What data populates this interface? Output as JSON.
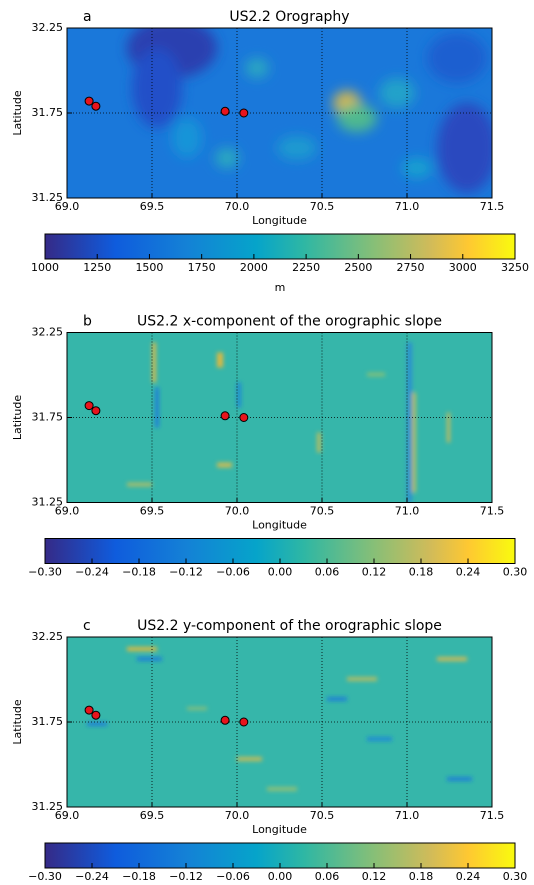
{
  "chart_data": [
    {
      "type": "heatmap",
      "panel": "a",
      "title": "US2.2 Orography",
      "xlabel": "Longitude",
      "ylabel": "Latitude",
      "xlim": [
        69.0,
        71.5
      ],
      "xticks": [
        {
          "value": 69,
          "label": "69.0"
        },
        69.5,
        {
          "value": 70,
          "label": "70.0"
        },
        70.5,
        {
          "value": 71,
          "label": "71.0"
        },
        71.5
      ],
      "ylim": [
        31.25,
        32.25
      ],
      "yticks": [
        31.25,
        31.75,
        32.25
      ],
      "grid": true,
      "points": {
        "x": [
          69.13,
          69.17,
          69.93,
          70.04
        ],
        "y": [
          31.82,
          31.79,
          31.76,
          31.75
        ],
        "color": "#e8141c"
      },
      "colorbar": {
        "label": "m",
        "lim": [
          1000,
          3250
        ],
        "ticks": [
          1000,
          1250,
          1500,
          1750,
          2000,
          2250,
          2500,
          2750,
          3000,
          3250
        ]
      }
    },
    {
      "type": "heatmap",
      "panel": "b",
      "title": "US2.2 x-component of the orographic slope",
      "xlabel": "Longitude",
      "ylabel": "Latitude",
      "xlim": [
        69.0,
        71.5
      ],
      "xticks": [
        {
          "value": 69,
          "label": "69.0"
        },
        69.5,
        {
          "value": 70,
          "label": "70.0"
        },
        70.5,
        {
          "value": 71,
          "label": "71.0"
        },
        71.5
      ],
      "ylim": [
        31.25,
        32.25
      ],
      "yticks": [
        31.25,
        31.75,
        32.25
      ],
      "grid": true,
      "points": {
        "x": [
          69.13,
          69.17,
          69.93,
          70.04
        ],
        "y": [
          31.82,
          31.79,
          31.76,
          31.75
        ],
        "color": "#e8141c"
      },
      "colorbar": {
        "lim": [
          -0.3,
          0.3
        ],
        "ticks": [
          {
            "value": -0.3,
            "label": "−0.30"
          },
          {
            "value": -0.24,
            "label": "−0.24"
          },
          {
            "value": -0.18,
            "label": "−0.18"
          },
          {
            "value": -0.12,
            "label": "−0.12"
          },
          {
            "value": -0.06,
            "label": "−0.06"
          },
          {
            "value": 0,
            "label": "0.00"
          },
          0.06,
          0.12,
          0.18,
          0.24,
          {
            "value": 0.3,
            "label": "0.30"
          }
        ]
      }
    },
    {
      "type": "heatmap",
      "panel": "c",
      "title": "US2.2 y-component of the orographic slope",
      "xlabel": "Longitude",
      "ylabel": "Latitude",
      "xlim": [
        69.0,
        71.5
      ],
      "xticks": [
        {
          "value": 69,
          "label": "69.0"
        },
        69.5,
        {
          "value": 70,
          "label": "70.0"
        },
        70.5,
        {
          "value": 71,
          "label": "71.0"
        },
        71.5
      ],
      "ylim": [
        31.25,
        32.25
      ],
      "yticks": [
        31.25,
        31.75,
        32.25
      ],
      "grid": true,
      "points": {
        "x": [
          69.13,
          69.17,
          69.93,
          70.04
        ],
        "y": [
          31.82,
          31.79,
          31.76,
          31.75
        ],
        "color": "#e8141c"
      },
      "colorbar": {
        "lim": [
          -0.3,
          0.3
        ],
        "ticks": [
          {
            "value": -0.3,
            "label": "−0.30"
          },
          {
            "value": -0.24,
            "label": "−0.24"
          },
          {
            "value": -0.18,
            "label": "−0.18"
          },
          {
            "value": -0.12,
            "label": "−0.12"
          },
          {
            "value": -0.06,
            "label": "−0.06"
          },
          {
            "value": 0,
            "label": "0.00"
          },
          0.06,
          0.12,
          0.18,
          0.24,
          {
            "value": 0.3,
            "label": "0.30"
          }
        ]
      }
    }
  ]
}
